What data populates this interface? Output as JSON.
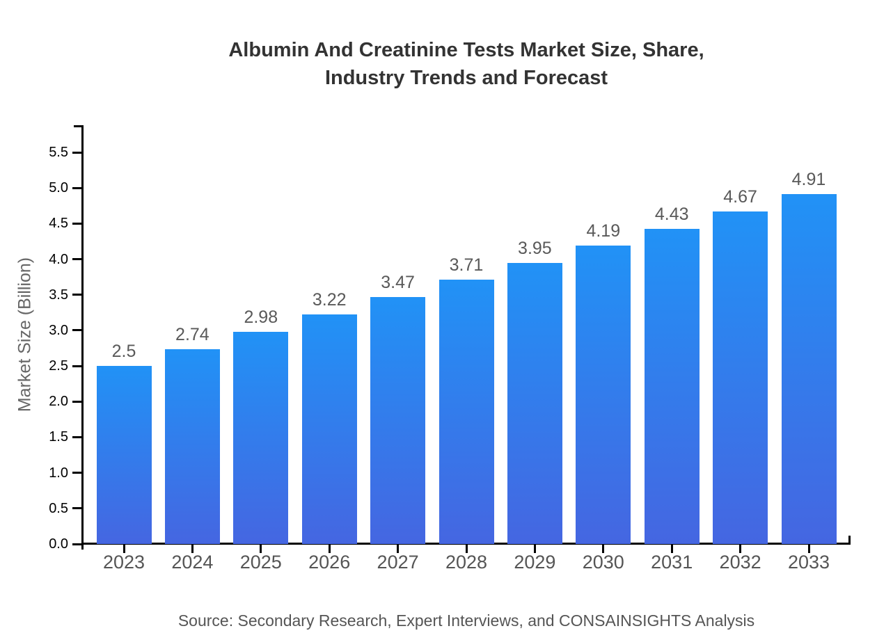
{
  "title": {
    "line1": "Albumin And Creatinine Tests Market Size, Share,",
    "line2": "Industry Trends and Forecast"
  },
  "source_note": "Source: Secondary Research, Expert Interviews, and CONSAINSIGHTS Analysis",
  "colors": {
    "background": "#ffffff",
    "title_text": "#333333",
    "axis": "#000000",
    "y_tick_label": "#000000",
    "x_tick_label": "#555555",
    "data_label": "#595959",
    "y_axis_title": "#666666",
    "source_text": "#555555",
    "bar_gradient_top": "#2192f6",
    "bar_gradient_bottom": "#4566e1"
  },
  "chart_data": {
    "type": "bar",
    "title": "Albumin And Creatinine Tests Market Size, Share, Industry Trends and Forecast",
    "categories": [
      "2023",
      "2024",
      "2025",
      "2026",
      "2027",
      "2028",
      "2029",
      "2030",
      "2031",
      "2032",
      "2033"
    ],
    "values": [
      2.5,
      2.74,
      2.98,
      3.22,
      3.47,
      3.71,
      3.95,
      4.19,
      4.43,
      4.67,
      4.91
    ],
    "value_labels": [
      "2.5",
      "2.74",
      "2.98",
      "3.22",
      "3.47",
      "3.71",
      "3.95",
      "4.19",
      "4.43",
      "4.67",
      "4.91"
    ],
    "xlabel": "",
    "ylabel": "Market Size (Billion)",
    "ylim": [
      0,
      5.875
    ],
    "yticks": [
      0.0,
      0.5,
      1.0,
      1.5,
      2.0,
      2.5,
      3.0,
      3.5,
      4.0,
      4.5,
      5.0,
      5.5
    ],
    "ytick_labels": [
      "0.0",
      "0.5",
      "1.0",
      "1.5",
      "2.0",
      "2.5",
      "3.0",
      "3.5",
      "4.0",
      "4.5",
      "5.0",
      "5.5"
    ],
    "grid": false,
    "legend": false
  }
}
